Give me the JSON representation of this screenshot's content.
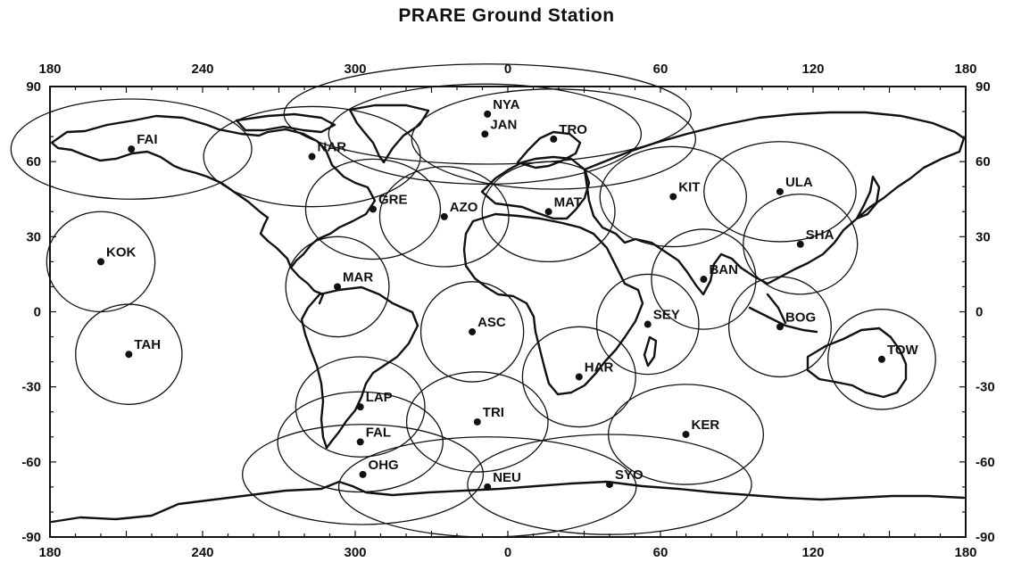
{
  "title": "PRARE Ground Station",
  "axes": {
    "lon_ticks_top": [
      "180",
      "240",
      "300",
      "0",
      "60",
      "120",
      "180"
    ],
    "lon_ticks_bottom": [
      "180",
      "240",
      "300",
      "0",
      "60",
      "120",
      "180"
    ],
    "lat_ticks_left": [
      "90",
      "60",
      "30",
      "0",
      "-30",
      "-60",
      "-90"
    ],
    "lat_ticks_right": [
      "90",
      "60",
      "30",
      "0",
      "-30",
      "-60",
      "-90"
    ]
  },
  "map_data": {
    "projection": "equirectangular",
    "lon_range": [
      180,
      540
    ],
    "lat_range": [
      -90,
      90
    ],
    "visibility_radius_deg": 20,
    "stations": [
      {
        "code": "FAI",
        "lon": 212,
        "lat": 65
      },
      {
        "code": "NYA",
        "lon": 352,
        "lat": 79
      },
      {
        "code": "TRO",
        "lon": 18,
        "lat": 69
      },
      {
        "code": "JAN",
        "lon": 351,
        "lat": 71
      },
      {
        "code": "NAR",
        "lon": 283,
        "lat": 62
      },
      {
        "code": "GRE",
        "lon": 307,
        "lat": 41
      },
      {
        "code": "AZO",
        "lon": 335,
        "lat": 38
      },
      {
        "code": "MAT",
        "lon": 16,
        "lat": 40
      },
      {
        "code": "KIT",
        "lon": 65,
        "lat": 46
      },
      {
        "code": "ULA",
        "lon": 107,
        "lat": 48
      },
      {
        "code": "SHA",
        "lon": 115,
        "lat": 27
      },
      {
        "code": "KOK",
        "lon": 200,
        "lat": 20
      },
      {
        "code": "BAN",
        "lon": 77,
        "lat": 13
      },
      {
        "code": "MAR",
        "lon": 293,
        "lat": 10
      },
      {
        "code": "SEY",
        "lon": 55,
        "lat": -5
      },
      {
        "code": "ASC",
        "lon": 346,
        "lat": -8
      },
      {
        "code": "BOG",
        "lon": 107,
        "lat": -6
      },
      {
        "code": "TAH",
        "lon": 211,
        "lat": -17
      },
      {
        "code": "TOW",
        "lon": 147,
        "lat": -19
      },
      {
        "code": "HAR",
        "lon": 28,
        "lat": -26
      },
      {
        "code": "LAP",
        "lon": 302,
        "lat": -38
      },
      {
        "code": "TRI",
        "lon": 348,
        "lat": -44
      },
      {
        "code": "KER",
        "lon": 70,
        "lat": -49
      },
      {
        "code": "FAL",
        "lon": 302,
        "lat": -52
      },
      {
        "code": "OHG",
        "lon": 303,
        "lat": -65
      },
      {
        "code": "NEU",
        "lon": 352,
        "lat": -70
      },
      {
        "code": "SYO",
        "lon": 40,
        "lat": -69
      }
    ]
  }
}
